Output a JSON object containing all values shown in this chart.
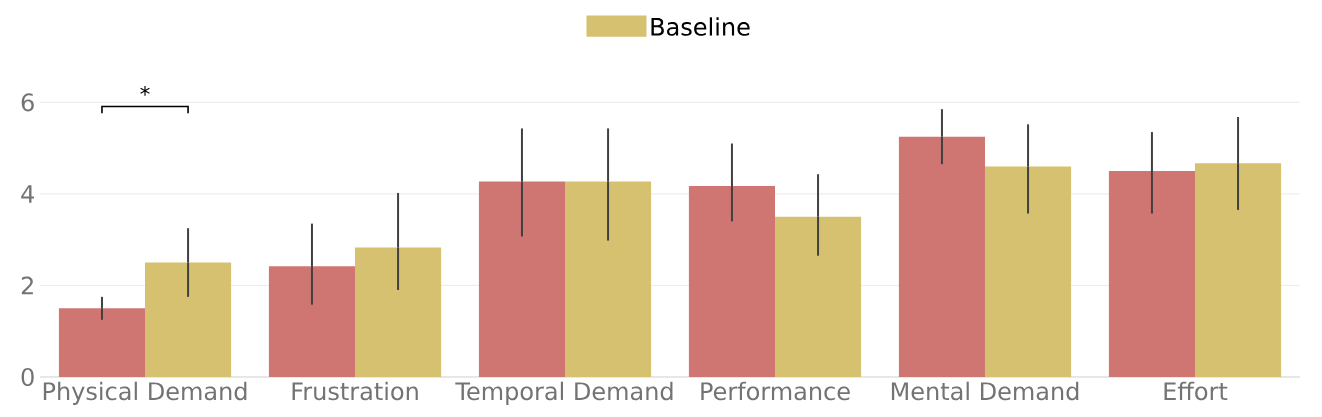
{
  "chart_data": {
    "type": "bar",
    "categories": [
      "Physical Demand",
      "Frustration",
      "Temporal Demand",
      "Performance",
      "Mental Demand",
      "Effort"
    ],
    "series": [
      {
        "color": "#d07672",
        "values": [
          1.5,
          2.42,
          4.27,
          4.17,
          5.25,
          4.5
        ],
        "errors": [
          [
            1.25,
            1.75
          ],
          [
            1.58,
            3.35
          ],
          [
            3.07,
            5.43
          ],
          [
            3.4,
            5.1
          ],
          [
            4.65,
            5.85
          ],
          [
            3.57,
            5.35
          ]
        ]
      },
      {
        "name": "Baseline",
        "color": "#d5c16f",
        "values": [
          2.5,
          2.83,
          4.27,
          3.5,
          4.6,
          4.67
        ],
        "errors": [
          [
            1.75,
            3.25
          ],
          [
            1.9,
            4.02
          ],
          [
            2.98,
            5.43
          ],
          [
            2.65,
            4.43
          ],
          [
            3.57,
            5.52
          ],
          [
            3.65,
            5.68
          ]
        ]
      }
    ],
    "ylim": [
      0,
      6
    ],
    "yticks": [
      0,
      2,
      4,
      6
    ],
    "grid": "y",
    "legend": "top",
    "annotations": [
      "*"
    ]
  }
}
